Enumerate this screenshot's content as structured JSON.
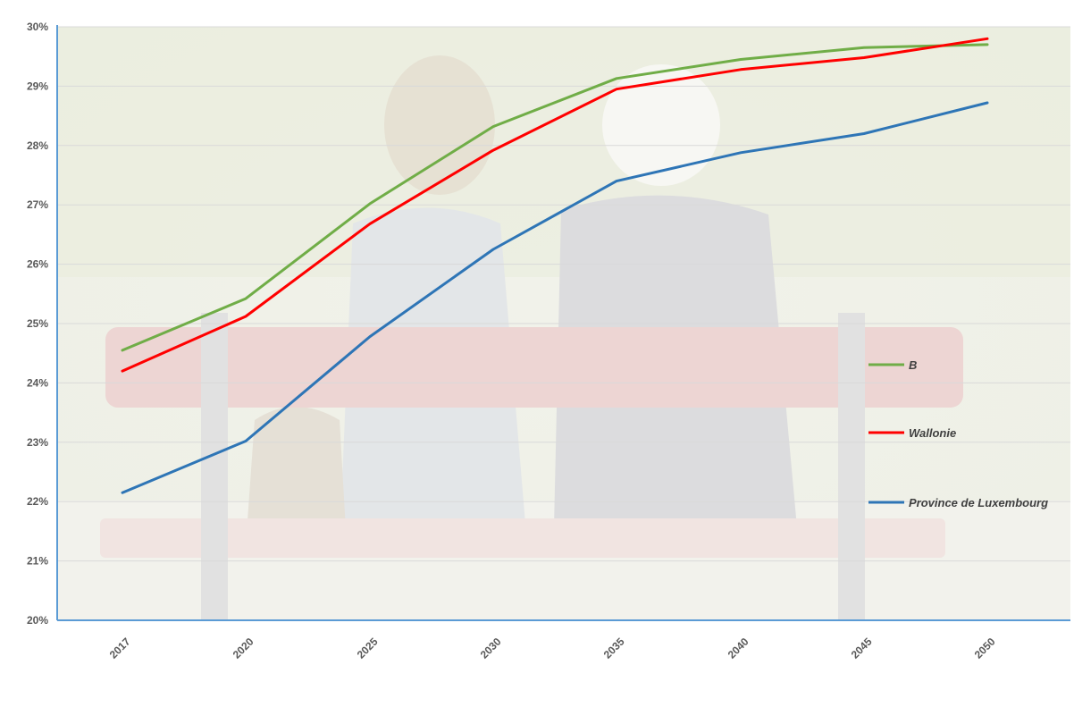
{
  "chart_data": {
    "type": "line",
    "title": "",
    "xlabel": "",
    "ylabel": "",
    "categories": [
      "2017",
      "2020",
      "2025",
      "2030",
      "2035",
      "2040",
      "2045",
      "2050"
    ],
    "ylim": [
      20,
      30
    ],
    "y_ticks": [
      "20%",
      "21%",
      "22%",
      "23%",
      "24%",
      "25%",
      "26%",
      "27%",
      "28%",
      "29%",
      "30%"
    ],
    "grid": true,
    "legend_position": "right",
    "background": "faded photo of two elderly people sitting on a park bench",
    "series": [
      {
        "name": "B",
        "color": "#70ad47",
        "values": [
          24.55,
          25.42,
          27.02,
          28.32,
          29.13,
          29.45,
          29.65,
          29.7
        ]
      },
      {
        "name": "Wallonie",
        "color": "#ff0000",
        "values": [
          24.2,
          25.12,
          26.68,
          27.92,
          28.95,
          29.28,
          29.48,
          29.8
        ]
      },
      {
        "name": "Province de Luxembourg",
        "color": "#2e75b6",
        "values": [
          22.15,
          23.02,
          24.78,
          26.25,
          27.4,
          27.88,
          28.2,
          28.72
        ]
      }
    ]
  }
}
